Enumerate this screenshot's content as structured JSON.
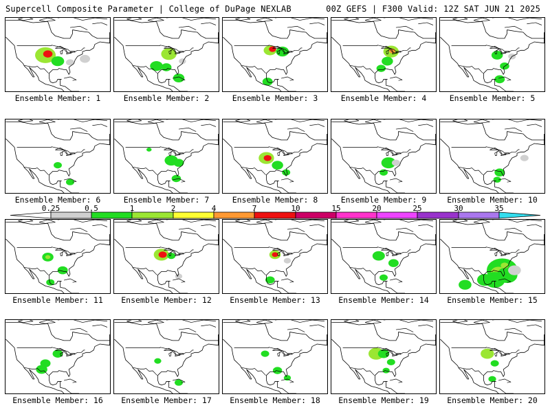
{
  "header": {
    "title_left": "Supercell Composite Parameter | College of DuPage NEXLAB",
    "title_right": "00Z GEFS | F300 Valid: 12Z SAT JUN 21 2025"
  },
  "panel_label_prefix": "Ensemble Member: ",
  "members": [
    {
      "label": "Ensemble Member: 1",
      "blobs": [
        {
          "lon": -100,
          "lat": 41,
          "r": 4,
          "level": 2
        },
        {
          "lon": -98,
          "lat": 42,
          "r": 1.8,
          "level": 5
        },
        {
          "lon": -90,
          "lat": 36,
          "r": 2.5,
          "level": 1
        },
        {
          "lon": -80,
          "lat": 35,
          "r": 1.6,
          "level": 0
        },
        {
          "lon": -68,
          "lat": 38,
          "r": 2,
          "level": 0
        }
      ]
    },
    {
      "label": "Ensemble Member: 2",
      "blobs": [
        {
          "lon": -88,
          "lat": 42,
          "r": 3,
          "level": 2
        },
        {
          "lon": -98,
          "lat": 32,
          "r": 2.5,
          "level": 1
        },
        {
          "lon": -90,
          "lat": 31,
          "r": 2,
          "level": 1
        },
        {
          "lon": -80,
          "lat": 22,
          "r": 2.2,
          "level": 1
        },
        {
          "lon": -77,
          "lat": 36,
          "r": 1.4,
          "level": 0
        }
      ]
    },
    {
      "label": "Ensemble Member: 3",
      "blobs": [
        {
          "lon": -94,
          "lat": 45,
          "r": 2.5,
          "level": 2
        },
        {
          "lon": -92,
          "lat": 46,
          "r": 1.4,
          "level": 5
        },
        {
          "lon": -84,
          "lat": 44,
          "r": 2.5,
          "level": 1
        },
        {
          "lon": -96,
          "lat": 19,
          "r": 2,
          "level": 1
        }
      ]
    },
    {
      "label": "Ensemble Member: 4",
      "blobs": [
        {
          "lon": -84,
          "lat": 44,
          "r": 3,
          "level": 2
        },
        {
          "lon": -83,
          "lat": 44.5,
          "r": 1.2,
          "level": 4
        },
        {
          "lon": -87,
          "lat": 36,
          "r": 2.2,
          "level": 1
        },
        {
          "lon": -92,
          "lat": 30,
          "r": 1.8,
          "level": 1
        }
      ]
    },
    {
      "label": "Ensemble Member: 5",
      "blobs": [
        {
          "lon": -86,
          "lat": 41,
          "r": 2.2,
          "level": 1
        },
        {
          "lon": -80,
          "lat": 32,
          "r": 1.8,
          "level": 1
        },
        {
          "lon": -84,
          "lat": 21,
          "r": 2,
          "level": 1
        },
        {
          "lon": -74,
          "lat": 40,
          "r": 1.5,
          "level": 0
        }
      ]
    },
    {
      "label": "Ensemble Member: 6",
      "blobs": [
        {
          "lon": -90,
          "lat": 34,
          "r": 1.6,
          "level": 1
        },
        {
          "lon": -80,
          "lat": 20,
          "r": 1.6,
          "level": 1
        }
      ]
    },
    {
      "label": "Ensemble Member: 7",
      "blobs": [
        {
          "lon": -86,
          "lat": 38,
          "r": 2.6,
          "level": 1
        },
        {
          "lon": -80,
          "lat": 36,
          "r": 2,
          "level": 1
        },
        {
          "lon": -82,
          "lat": 23,
          "r": 1.8,
          "level": 1
        },
        {
          "lon": -104,
          "lat": 47,
          "r": 1,
          "level": 1
        }
      ]
    },
    {
      "label": "Ensemble Member: 8",
      "blobs": [
        {
          "lon": -97,
          "lat": 40,
          "r": 3,
          "level": 2
        },
        {
          "lon": -96,
          "lat": 40,
          "r": 1.5,
          "level": 5
        },
        {
          "lon": -88,
          "lat": 34,
          "r": 2.2,
          "level": 1
        },
        {
          "lon": -81,
          "lat": 28,
          "r": 1.6,
          "level": 1
        }
      ]
    },
    {
      "label": "Ensemble Member: 9",
      "blobs": [
        {
          "lon": -86,
          "lat": 36,
          "r": 2.8,
          "level": 1
        },
        {
          "lon": -80,
          "lat": 36,
          "r": 1.6,
          "level": 0
        },
        {
          "lon": -90,
          "lat": 28,
          "r": 1.6,
          "level": 1
        }
      ]
    },
    {
      "label": "Ensemble Member: 10",
      "blobs": [
        {
          "lon": -84,
          "lat": 28,
          "r": 2,
          "level": 1
        },
        {
          "lon": -64,
          "lat": 40,
          "r": 1.6,
          "level": 0
        },
        {
          "lon": -86,
          "lat": 22,
          "r": 1.5,
          "level": 1
        }
      ]
    },
    {
      "label": "Ensemble Member: 11",
      "blobs": [
        {
          "lon": -98,
          "lat": 41,
          "r": 2.2,
          "level": 1
        },
        {
          "lon": -98,
          "lat": 41,
          "r": 1,
          "level": 2
        },
        {
          "lon": -86,
          "lat": 30,
          "r": 2,
          "level": 1
        },
        {
          "lon": -96,
          "lat": 20,
          "r": 1.6,
          "level": 1
        }
      ]
    },
    {
      "label": "Ensemble Member: 12",
      "blobs": [
        {
          "lon": -94,
          "lat": 43,
          "r": 3,
          "level": 2
        },
        {
          "lon": -93,
          "lat": 43,
          "r": 1.6,
          "level": 5
        },
        {
          "lon": -86,
          "lat": 42,
          "r": 1.6,
          "level": 1
        },
        {
          "lon": -80,
          "lat": 25,
          "r": 1.4,
          "level": 0
        }
      ]
    },
    {
      "label": "Ensemble Member: 13",
      "blobs": [
        {
          "lon": -90,
          "lat": 43,
          "r": 2.2,
          "level": 2
        },
        {
          "lon": -90,
          "lat": 43,
          "r": 1.2,
          "level": 5
        },
        {
          "lon": -94,
          "lat": 22,
          "r": 1.8,
          "level": 1
        },
        {
          "lon": -80,
          "lat": 38,
          "r": 1.4,
          "level": 0
        }
      ]
    },
    {
      "label": "Ensemble Member: 14",
      "blobs": [
        {
          "lon": -94,
          "lat": 42,
          "r": 2.4,
          "level": 1
        },
        {
          "lon": -82,
          "lat": 36,
          "r": 2,
          "level": 1
        },
        {
          "lon": -90,
          "lat": 24,
          "r": 1.6,
          "level": 1
        }
      ]
    },
    {
      "label": "Ensemble Member: 15",
      "blobs": [
        {
          "lon": -82,
          "lat": 30,
          "r": 6,
          "level": 1
        },
        {
          "lon": -85,
          "lat": 28,
          "r": 3,
          "level": 2
        },
        {
          "lon": -78,
          "lat": 26,
          "r": 4,
          "level": 1
        },
        {
          "lon": -88,
          "lat": 22,
          "r": 4,
          "level": 1
        },
        {
          "lon": -96,
          "lat": 22,
          "r": 3,
          "level": 1
        },
        {
          "lon": -112,
          "lat": 18,
          "r": 2.5,
          "level": 1
        },
        {
          "lon": -80,
          "lat": 34,
          "r": 1.5,
          "level": 2
        },
        {
          "lon": -72,
          "lat": 30,
          "r": 2.5,
          "level": 0
        }
      ]
    },
    {
      "label": "Ensemble Member: 16",
      "blobs": [
        {
          "lon": -90,
          "lat": 44,
          "r": 2,
          "level": 1
        },
        {
          "lon": -100,
          "lat": 36,
          "r": 2,
          "level": 1
        },
        {
          "lon": -103,
          "lat": 31,
          "r": 2.2,
          "level": 1
        }
      ]
    },
    {
      "label": "Ensemble Member: 17",
      "blobs": [
        {
          "lon": -97,
          "lat": 38,
          "r": 1.4,
          "level": 1
        },
        {
          "lon": -80,
          "lat": 20,
          "r": 1.6,
          "level": 1
        }
      ]
    },
    {
      "label": "Ensemble Member: 18",
      "blobs": [
        {
          "lon": -98,
          "lat": 44,
          "r": 1.6,
          "level": 1
        },
        {
          "lon": -88,
          "lat": 30,
          "r": 1.8,
          "level": 1
        },
        {
          "lon": -80,
          "lat": 24,
          "r": 1.4,
          "level": 1
        }
      ]
    },
    {
      "label": "Ensemble Member: 19",
      "blobs": [
        {
          "lon": -96,
          "lat": 44,
          "r": 3,
          "level": 2
        },
        {
          "lon": -90,
          "lat": 44,
          "r": 2.2,
          "level": 1
        },
        {
          "lon": -84,
          "lat": 37,
          "r": 1.6,
          "level": 1
        },
        {
          "lon": -88,
          "lat": 30,
          "r": 1.4,
          "level": 1
        }
      ]
    },
    {
      "label": "Ensemble Member: 20",
      "blobs": [
        {
          "lon": -94,
          "lat": 44,
          "r": 2.6,
          "level": 2
        },
        {
          "lon": -88,
          "lat": 36,
          "r": 1.6,
          "level": 1
        },
        {
          "lon": -90,
          "lat": 23,
          "r": 1.5,
          "level": 1
        }
      ]
    }
  ],
  "colorbar": {
    "ticks": [
      "0.25",
      "0.5",
      "1",
      "2",
      "4",
      "7",
      "10",
      "15",
      "20",
      "25",
      "30",
      "35"
    ],
    "colors": [
      "#d0d0d0",
      "#22dd22",
      "#9be633",
      "#ffff33",
      "#ff9933",
      "#ee1111",
      "#cc0066",
      "#ff33cc",
      "#ee44ff",
      "#9933cc",
      "#aa77ee",
      "#33ddee"
    ],
    "outline_color": "#000000"
  }
}
